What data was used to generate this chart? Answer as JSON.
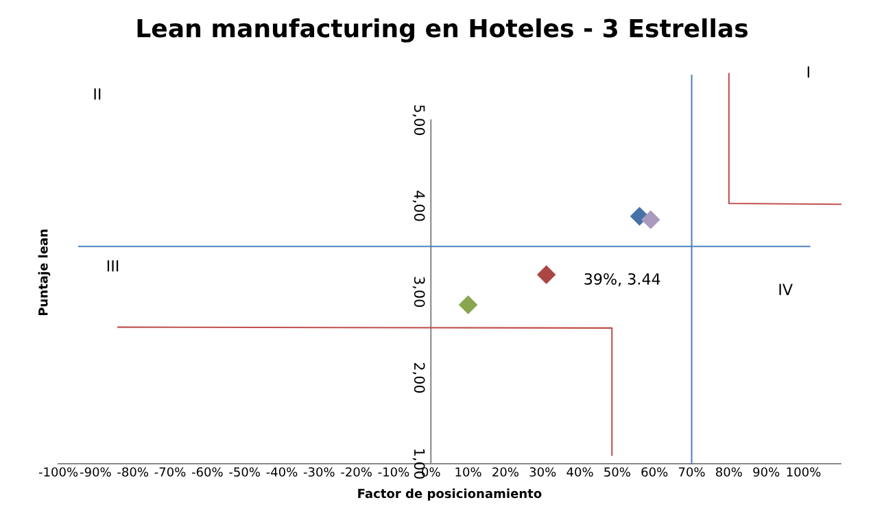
{
  "chart_data": {
    "type": "scatter",
    "title": "Lean manufacturing en Hoteles - 3 Estrellas",
    "xlabel": "Factor de posicionamiento",
    "ylabel": "Puntaje lean",
    "xlim": [
      -100,
      110
    ],
    "ylim": [
      1,
      5.55
    ],
    "xticks": [
      {
        "value": -100,
        "label": "-100%"
      },
      {
        "value": -90,
        "label": "-90%"
      },
      {
        "value": -80,
        "label": "-80%"
      },
      {
        "value": -70,
        "label": "-70%"
      },
      {
        "value": -60,
        "label": "-60%"
      },
      {
        "value": -50,
        "label": "-50%"
      },
      {
        "value": -40,
        "label": "-40%"
      },
      {
        "value": -30,
        "label": "-30%"
      },
      {
        "value": -20,
        "label": "-20%"
      },
      {
        "value": -10,
        "label": "-10%"
      },
      {
        "value": 0,
        "label": "0%"
      },
      {
        "value": 10,
        "label": "10%"
      },
      {
        "value": 20,
        "label": "20%"
      },
      {
        "value": 30,
        "label": "30%"
      },
      {
        "value": 40,
        "label": "40%"
      },
      {
        "value": 50,
        "label": "50%"
      },
      {
        "value": 60,
        "label": "60%"
      },
      {
        "value": 70,
        "label": "70%"
      },
      {
        "value": 80,
        "label": "80%"
      },
      {
        "value": 90,
        "label": "90%"
      },
      {
        "value": 100,
        "label": "100%"
      }
    ],
    "yticks": [
      {
        "value": 1,
        "label": "1,00"
      },
      {
        "value": 2,
        "label": "2,00"
      },
      {
        "value": 3,
        "label": "3,00"
      },
      {
        "value": 4,
        "label": "4,00"
      },
      {
        "value": 5,
        "label": "5,00"
      }
    ],
    "grid": false,
    "legend": false,
    "marker": "diamond",
    "series": [
      {
        "color": "#4572a7",
        "x": [
          56
        ],
        "values": [
          3.88
        ]
      },
      {
        "color": "#a99bbd",
        "x": [
          59
        ],
        "values": [
          3.84
        ]
      },
      {
        "color": "#aa4643",
        "x": [
          31
        ],
        "values": [
          3.2
        ]
      },
      {
        "color": "#89a54e",
        "x": [
          10
        ],
        "values": [
          2.85
        ]
      },
      {
        "type": "line",
        "color": "#4f81bd",
        "x": [
          -94.5,
          101.7
        ],
        "values": [
          3.53,
          3.53
        ],
        "marker": "none"
      },
      {
        "type": "line",
        "color": "#4f81bd",
        "x": [
          70,
          70
        ],
        "values": [
          1,
          5.52
        ],
        "marker": "none"
      },
      {
        "type": "line",
        "color": "#c0504d",
        "x": [
          -84,
          48.6,
          48.6
        ],
        "values": [
          2.59,
          2.58,
          1.1
        ],
        "marker": "none"
      },
      {
        "type": "line",
        "color": "#c0504d",
        "x": [
          80,
          80,
          110
        ],
        "values": [
          5.54,
          4.03,
          4.02
        ],
        "marker": "none"
      }
    ],
    "annotations": [
      "39%, 3.44",
      "I",
      "II",
      "III",
      "IV"
    ]
  }
}
